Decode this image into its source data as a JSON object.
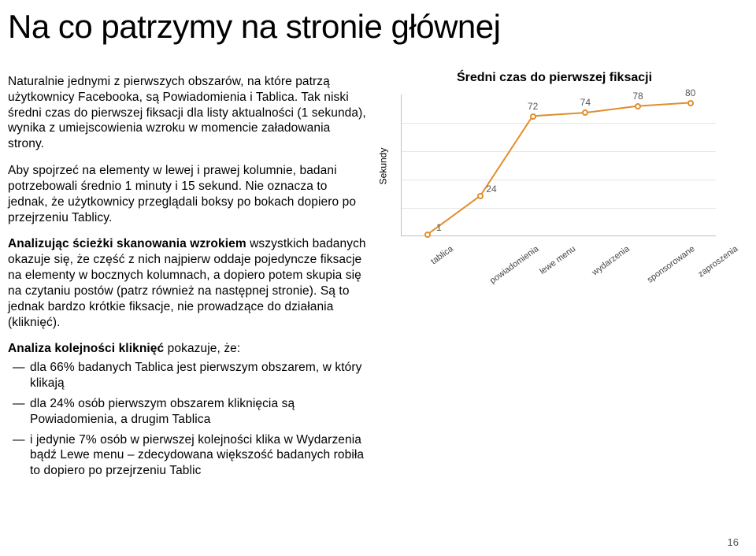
{
  "title": "Na co patrzymy na stronie głównej",
  "paragraphs": {
    "p1": "Naturalnie jednymi z pierwszych obszarów, na które patrzą użytkownicy Facebooka, są Powiadomienia i Tablica. Tak niski średni czas do pierwszej fiksacji dla listy aktualności (1 sekunda), wynika z umiejscowienia wzroku w momencie załadowania strony.",
    "p2": "Aby spojrzeć na elementy w lewej i prawej kolumnie, badani potrzebowali średnio 1 minuty i 15 sekund. Nie oznacza to jednak, że użytkownicy przeglądali boksy po bokach dopiero po przejrzeniu Tablicy.",
    "p3_lead": "Analizując ścieżki skanowania wzrokiem",
    "p3_rest": " wszystkich badanych okazuje się, że część z nich najpierw oddaje pojedyncze fiksacje na elementy w bocznych kolumnach, a dopiero potem skupia się na czytaniu postów (patrz również na następnej stronie). Są to jednak bardzo krótkie fiksacje, nie prowadzące do działania (kliknięć).",
    "analysis_head": "Analiza kolejności kliknięć",
    "analysis_tail": " pokazuje, że:",
    "bullets": [
      "dla 66% badanych Tablica jest pierwszym obszarem, w który klikają",
      "dla 24% osób pierwszym obszarem kliknięcia są Powiadomienia, a drugim Tablica",
      "i jedynie 7% osób w pierwszej kolejności klika w Wydarzenia bądź Lewe menu – zdecydowana większość badanych robiła to dopiero po przejrzeniu Tablic"
    ]
  },
  "chart": {
    "type": "line",
    "title": "Średni czas do pierwszej fiksacji",
    "ylabel": "Sekundy",
    "categories": [
      "tablica",
      "powiadomienia",
      "lewe menu",
      "wydarzenia",
      "sponsorowane",
      "zaproszenia"
    ],
    "values": [
      1,
      24,
      72,
      74,
      78,
      80
    ],
    "ylim": [
      0,
      85
    ],
    "line_color": "#E08E2B",
    "line_width": 2,
    "marker_radius": 4,
    "marker_fill": "#ffffff",
    "marker_stroke": "#E08E2B",
    "grid_color": "#e6e6e6",
    "axis_color": "#bfbfbf",
    "background_color": "#ffffff",
    "title_fontsize": 16,
    "label_fontsize": 12,
    "value_label_fontsize": 12,
    "category_fontsize": 11,
    "n_hgrid": 4
  },
  "page_number": "16"
}
